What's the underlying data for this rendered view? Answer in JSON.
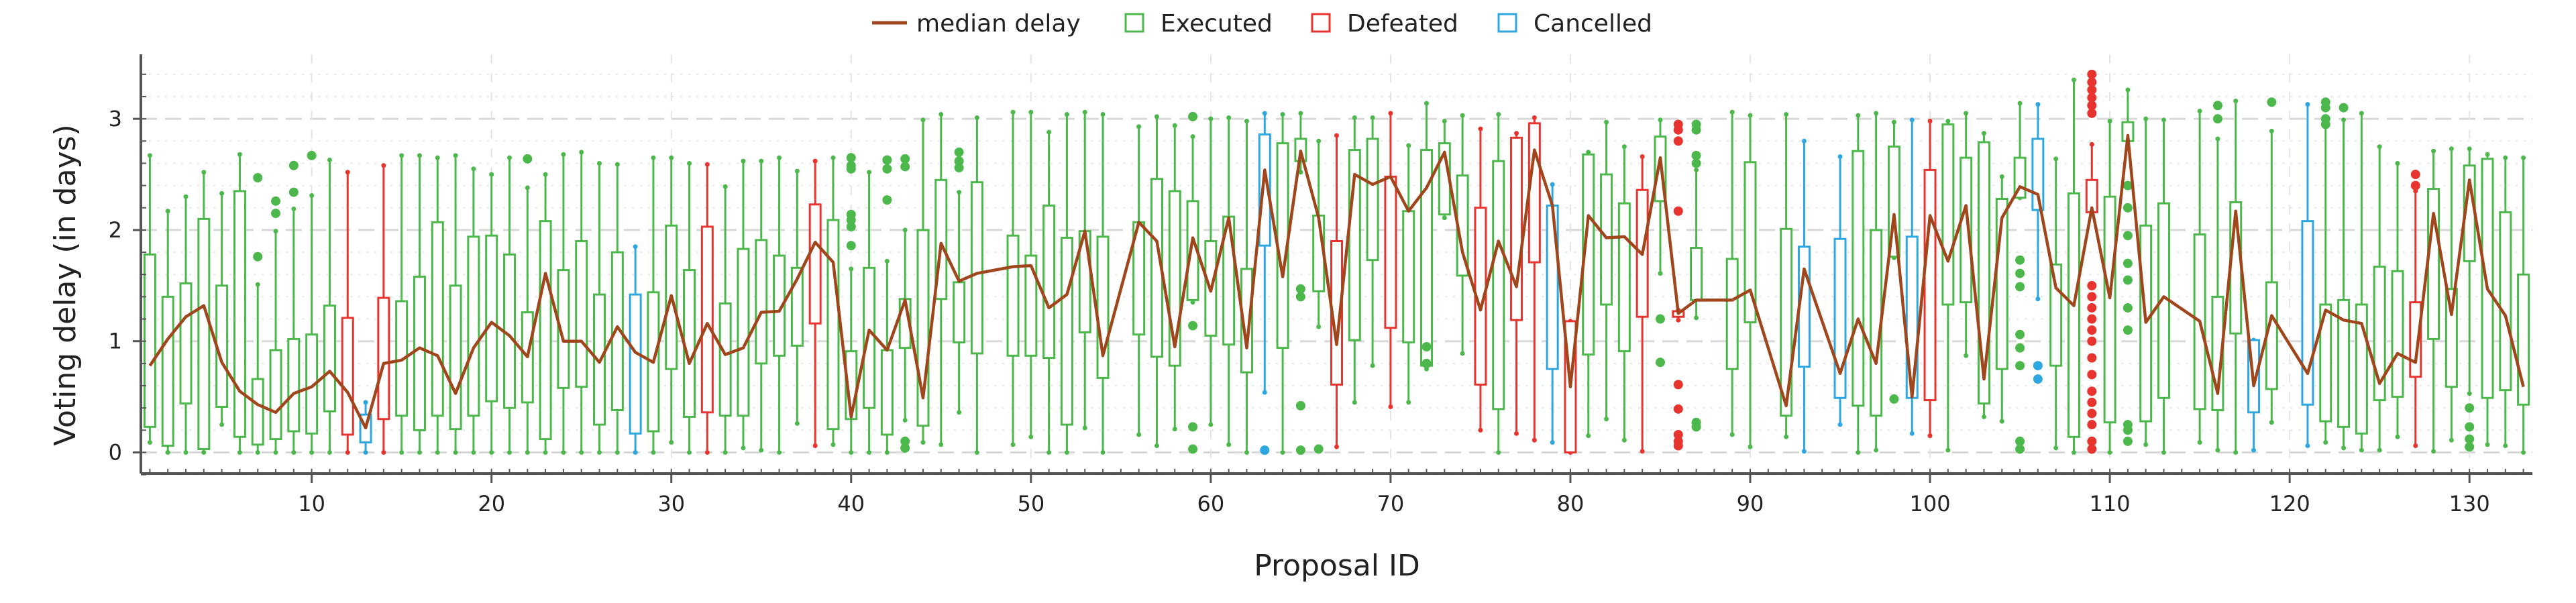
{
  "chart_data": {
    "type": "box",
    "title": "",
    "xlabel": "Proposal ID",
    "ylabel": "Voting delay (in days)",
    "xlim": [
      0.5,
      133.5
    ],
    "ylim": [
      -0.19,
      3.58
    ],
    "xticks": [
      10,
      20,
      30,
      40,
      50,
      60,
      70,
      80,
      90,
      100,
      110,
      120,
      130
    ],
    "yticks": [
      0,
      1,
      2,
      3
    ],
    "grid": true,
    "legend_position": "top-center",
    "legend": [
      {
        "key": "median",
        "label": "median delay",
        "kind": "line"
      },
      {
        "key": "E",
        "label": "Executed",
        "kind": "box"
      },
      {
        "key": "D",
        "label": "Defeated",
        "kind": "box"
      },
      {
        "key": "C",
        "label": "Cancelled",
        "kind": "box"
      }
    ],
    "colors": {
      "E": "#4cb84c",
      "D": "#e8342f",
      "C": "#2ea6df",
      "median": "#a0461c",
      "grid": "#d8d8d8",
      "axis": "#555555"
    },
    "box_fields": [
      "id",
      "status",
      "whisker_low",
      "q1",
      "median",
      "q3",
      "whisker_high",
      "outliers"
    ],
    "boxes": [
      [
        1,
        "E",
        0.09,
        0.23,
        0.78,
        1.78,
        2.67,
        []
      ],
      [
        2,
        "E",
        0,
        0.06,
        1.02,
        1.4,
        2.17,
        []
      ],
      [
        3,
        "E",
        0,
        0.44,
        1.22,
        1.52,
        2.3,
        []
      ],
      [
        4,
        "E",
        0,
        0.03,
        1.32,
        2.1,
        2.52,
        []
      ],
      [
        5,
        "E",
        0.25,
        0.41,
        0.81,
        1.5,
        2.33,
        []
      ],
      [
        6,
        "E",
        0,
        0.14,
        0.55,
        2.35,
        2.68,
        []
      ],
      [
        7,
        "E",
        0,
        0.07,
        0.43,
        0.66,
        1.51,
        [
          2.47,
          1.76
        ]
      ],
      [
        8,
        "E",
        0,
        0.12,
        0.36,
        0.92,
        1.99,
        [
          2.26,
          2.15
        ]
      ],
      [
        9,
        "E",
        0,
        0.19,
        0.53,
        1.02,
        2.19,
        [
          2.58,
          2.34
        ]
      ],
      [
        10,
        "E",
        0,
        0.17,
        0.59,
        1.06,
        2.31,
        [
          2.67
        ]
      ],
      [
        11,
        "E",
        0,
        0.37,
        0.73,
        1.32,
        2.63,
        []
      ],
      [
        12,
        "D",
        0,
        0.16,
        0.54,
        1.21,
        2.52,
        []
      ],
      [
        13,
        "C",
        0,
        0.09,
        0.22,
        0.34,
        0.45,
        []
      ],
      [
        14,
        "D",
        0,
        0.3,
        0.8,
        1.39,
        2.58,
        []
      ],
      [
        15,
        "E",
        0,
        0.33,
        0.83,
        1.36,
        2.67,
        []
      ],
      [
        16,
        "E",
        0,
        0.2,
        0.94,
        1.58,
        2.67,
        []
      ],
      [
        17,
        "E",
        0,
        0.33,
        0.87,
        2.07,
        2.65,
        []
      ],
      [
        18,
        "E",
        0,
        0.21,
        0.53,
        1.5,
        2.67,
        []
      ],
      [
        19,
        "E",
        0,
        0.33,
        0.94,
        1.94,
        2.55,
        []
      ],
      [
        20,
        "E",
        0,
        0.46,
        1.17,
        1.95,
        2.5,
        []
      ],
      [
        21,
        "E",
        0,
        0.4,
        1.05,
        1.78,
        2.65,
        []
      ],
      [
        22,
        "E",
        0,
        0.45,
        0.86,
        1.26,
        2.38,
        [
          2.64
        ]
      ],
      [
        23,
        "E",
        0,
        0.12,
        1.61,
        2.08,
        2.5,
        []
      ],
      [
        24,
        "E",
        0,
        0.58,
        1.0,
        1.64,
        2.68,
        []
      ],
      [
        25,
        "E",
        0,
        0.59,
        1.0,
        1.9,
        2.7,
        []
      ],
      [
        26,
        "E",
        0,
        0.25,
        0.81,
        1.42,
        2.6,
        []
      ],
      [
        27,
        "E",
        0,
        0.38,
        1.13,
        1.8,
        2.59,
        []
      ],
      [
        28,
        "C",
        0,
        0.17,
        0.9,
        1.42,
        1.85,
        []
      ],
      [
        29,
        "E",
        0,
        0.19,
        0.81,
        1.44,
        2.65,
        []
      ],
      [
        30,
        "E",
        0.09,
        0.75,
        1.41,
        2.04,
        2.65,
        []
      ],
      [
        31,
        "E",
        0,
        0.32,
        0.8,
        1.64,
        2.6,
        []
      ],
      [
        32,
        "D",
        0,
        0.36,
        1.16,
        2.03,
        2.59,
        []
      ],
      [
        33,
        "E",
        0,
        0.33,
        0.88,
        1.34,
        2.39,
        []
      ],
      [
        34,
        "E",
        0.04,
        0.33,
        0.94,
        1.83,
        2.62,
        []
      ],
      [
        35,
        "E",
        0.02,
        0.8,
        1.26,
        1.91,
        2.62,
        []
      ],
      [
        36,
        "E",
        0,
        0.87,
        1.27,
        1.77,
        2.65,
        []
      ],
      [
        37,
        "E",
        0.26,
        0.96,
        1.56,
        1.66,
        2.53,
        []
      ],
      [
        38,
        "D",
        0.06,
        1.16,
        1.89,
        2.23,
        2.62,
        []
      ],
      [
        39,
        "E",
        0.07,
        0.21,
        1.71,
        2.09,
        2.65,
        []
      ],
      [
        40,
        "E",
        0,
        0.3,
        0.32,
        0.91,
        1.65,
        [
          2.65,
          2.58,
          2.55,
          2.14,
          2.09,
          2.03,
          1.86
        ]
      ],
      [
        41,
        "E",
        0,
        0.4,
        1.1,
        1.66,
        2.52,
        []
      ],
      [
        42,
        "E",
        0,
        0.16,
        0.92,
        0.92,
        1.72,
        [
          2.63,
          2.55,
          2.27
        ]
      ],
      [
        43,
        "E",
        0.29,
        0.94,
        1.37,
        1.38,
        2.0,
        [
          2.64,
          2.57,
          0.1,
          0.04
        ]
      ],
      [
        44,
        "E",
        0.09,
        0.24,
        0.49,
        2.0,
        2.99,
        []
      ],
      [
        45,
        "E",
        0.07,
        1.38,
        1.88,
        2.45,
        3.04,
        []
      ],
      [
        46,
        "E",
        0.36,
        0.99,
        1.54,
        1.53,
        2.34,
        [
          2.7,
          2.62,
          2.56
        ]
      ],
      [
        47,
        "E",
        0,
        0.89,
        1.61,
        2.43,
        3.01,
        []
      ],
      [
        49,
        "E",
        0.07,
        0.87,
        1.67,
        1.95,
        3.06,
        []
      ],
      [
        50,
        "E",
        0.14,
        0.87,
        1.68,
        1.77,
        3.06,
        []
      ],
      [
        51,
        "E",
        0,
        0.85,
        1.3,
        2.22,
        2.88,
        []
      ],
      [
        52,
        "E",
        0,
        0.25,
        1.42,
        1.93,
        3.04,
        []
      ],
      [
        53,
        "E",
        0.22,
        1.08,
        1.99,
        1.99,
        3.06,
        []
      ],
      [
        54,
        "E",
        0,
        0.67,
        0.87,
        1.94,
        3.04,
        []
      ],
      [
        56,
        "E",
        0.16,
        1.06,
        2.07,
        2.07,
        2.93,
        []
      ],
      [
        57,
        "E",
        0.06,
        0.86,
        1.9,
        2.46,
        3.02,
        []
      ],
      [
        58,
        "E",
        0.21,
        0.78,
        0.95,
        2.35,
        2.94,
        []
      ],
      [
        59,
        "E",
        1.35,
        1.37,
        1.93,
        2.26,
        2.84,
        [
          3.02,
          1.14,
          0.23,
          0.03
        ]
      ],
      [
        60,
        "E",
        0.25,
        1.05,
        1.45,
        1.9,
        3.0,
        []
      ],
      [
        61,
        "E",
        0.07,
        0.97,
        2.11,
        2.12,
        3.01,
        []
      ],
      [
        62,
        "E",
        0,
        0.72,
        0.94,
        1.65,
        2.98,
        []
      ],
      [
        63,
        "C",
        0.54,
        1.86,
        2.54,
        2.86,
        3.05,
        [
          0.02
        ]
      ],
      [
        64,
        "E",
        0,
        0.94,
        1.58,
        2.78,
        3.04,
        []
      ],
      [
        65,
        "E",
        2.52,
        2.62,
        2.71,
        2.82,
        3.05,
        [
          1.47,
          1.4,
          0.42,
          0.02
        ]
      ],
      [
        66,
        "E",
        1.13,
        1.45,
        2.11,
        2.13,
        2.8,
        [
          0.03
        ]
      ],
      [
        67,
        "D",
        0.05,
        0.61,
        0.97,
        1.9,
        2.85,
        []
      ],
      [
        68,
        "E",
        0.45,
        1.01,
        2.5,
        2.72,
        3.01,
        []
      ],
      [
        69,
        "E",
        0.78,
        1.73,
        2.41,
        2.82,
        3.01,
        []
      ],
      [
        70,
        "D",
        0.41,
        1.12,
        2.48,
        2.48,
        3.05,
        []
      ],
      [
        71,
        "E",
        0.45,
        0.99,
        2.17,
        2.17,
        2.76,
        []
      ],
      [
        72,
        "E",
        0.75,
        0.78,
        2.38,
        2.72,
        3.14,
        [
          0.95,
          0.8
        ]
      ],
      [
        73,
        "E",
        2.11,
        2.14,
        2.7,
        2.78,
        2.98,
        []
      ],
      [
        74,
        "E",
        0.89,
        1.59,
        1.8,
        2.49,
        3.03,
        []
      ],
      [
        75,
        "D",
        0.2,
        0.61,
        1.28,
        2.2,
        2.91,
        []
      ],
      [
        76,
        "E",
        0,
        0.39,
        1.9,
        2.62,
        3.04,
        []
      ],
      [
        77,
        "D",
        0.17,
        1.19,
        1.49,
        2.83,
        2.87,
        []
      ],
      [
        78,
        "D",
        0.11,
        1.71,
        2.72,
        2.96,
        3.01,
        []
      ],
      [
        79,
        "C",
        0.09,
        0.75,
        2.22,
        2.22,
        2.41,
        []
      ],
      [
        80,
        "D",
        0,
        0,
        0.59,
        1.18,
        1.18,
        []
      ],
      [
        81,
        "E",
        0.15,
        0.88,
        2.13,
        2.68,
        2.7,
        []
      ],
      [
        82,
        "E",
        0.3,
        1.33,
        1.93,
        2.5,
        2.97,
        []
      ],
      [
        83,
        "E",
        0.11,
        0.91,
        1.94,
        2.24,
        2.75,
        []
      ],
      [
        84,
        "D",
        0.01,
        1.22,
        1.78,
        2.36,
        2.66,
        []
      ],
      [
        85,
        "E",
        1.61,
        2.26,
        2.65,
        2.84,
        2.99,
        [
          1.2,
          0.81
        ]
      ],
      [
        86,
        "D",
        1.19,
        1.22,
        1.25,
        1.27,
        1.28,
        [
          2.95,
          2.9,
          2.8,
          2.17,
          0.61,
          0.39,
          0.16,
          0.1,
          0.06
        ]
      ],
      [
        87,
        "E",
        1.21,
        1.37,
        1.37,
        1.84,
        2.54,
        [
          2.95,
          2.9,
          2.67,
          2.6,
          0.27,
          0.23
        ]
      ],
      [
        89,
        "E",
        0.16,
        0.75,
        1.37,
        1.74,
        3.06,
        []
      ],
      [
        90,
        "E",
        0.05,
        1.17,
        1.46,
        2.61,
        3.03,
        []
      ],
      [
        92,
        "E",
        0.14,
        0.33,
        0.42,
        2.01,
        3.04,
        []
      ],
      [
        93,
        "C",
        0.01,
        0.77,
        1.65,
        1.85,
        2.8,
        []
      ],
      [
        95,
        "C",
        0.25,
        0.49,
        0.71,
        1.92,
        2.66,
        []
      ],
      [
        96,
        "E",
        0,
        0.42,
        1.2,
        2.71,
        3.03,
        []
      ],
      [
        97,
        "E",
        0.02,
        0.33,
        0.8,
        2.0,
        3.05,
        []
      ],
      [
        98,
        "E",
        1.75,
        1.76,
        2.14,
        2.75,
        2.97,
        [
          0.48
        ]
      ],
      [
        99,
        "C",
        0.17,
        0.49,
        0.5,
        1.94,
        2.99,
        []
      ],
      [
        100,
        "D",
        0.15,
        0.47,
        2.13,
        2.54,
        2.98,
        []
      ],
      [
        101,
        "E",
        0.02,
        1.33,
        1.72,
        2.95,
        2.98,
        []
      ],
      [
        102,
        "E",
        0.87,
        1.35,
        2.22,
        2.65,
        3.05,
        []
      ],
      [
        103,
        "E",
        0.32,
        0.44,
        0.66,
        2.79,
        2.87,
        []
      ],
      [
        104,
        "E",
        0.28,
        0.75,
        2.11,
        2.28,
        2.48,
        []
      ],
      [
        105,
        "E",
        2.29,
        2.29,
        2.39,
        2.65,
        3.14,
        [
          1.73,
          1.61,
          1.49,
          1.06,
          0.94,
          0.78,
          0.1,
          0.03
        ]
      ],
      [
        106,
        "C",
        1.38,
        2.18,
        2.32,
        2.82,
        3.13,
        [
          0.78,
          0.66
        ]
      ],
      [
        107,
        "E",
        0.04,
        0.78,
        1.48,
        1.69,
        2.64,
        []
      ],
      [
        108,
        "E",
        0,
        0.14,
        1.32,
        2.33,
        3.35,
        []
      ],
      [
        109,
        "D",
        2.16,
        2.16,
        2.2,
        2.45,
        2.77,
        [
          3.4,
          3.33,
          3.26,
          3.19,
          3.12,
          3.05,
          1.5,
          1.4,
          1.3,
          1.2,
          1.1,
          1.0,
          0.85,
          0.7,
          0.55,
          0.45,
          0.35,
          0.25,
          0.1,
          0.03
        ]
      ],
      [
        110,
        "E",
        0,
        0.27,
        1.39,
        2.3,
        2.98,
        []
      ],
      [
        111,
        "E",
        2.8,
        2.8,
        2.85,
        2.97,
        3.26,
        [
          2.4,
          2.2,
          1.95,
          1.7,
          1.55,
          1.3,
          1.1,
          0.25,
          0.2,
          0.1
        ]
      ],
      [
        112,
        "E",
        0.07,
        0.28,
        1.17,
        2.04,
        3.0,
        []
      ],
      [
        113,
        "E",
        0,
        0.49,
        1.4,
        2.24,
        2.99,
        []
      ],
      [
        115,
        "E",
        0.09,
        0.39,
        1.18,
        1.96,
        3.07,
        []
      ],
      [
        116,
        "E",
        0.02,
        0.38,
        0.53,
        1.4,
        2.82,
        [
          3.12,
          3.0
        ]
      ],
      [
        117,
        "E",
        0,
        1.07,
        2.17,
        2.25,
        3.16,
        []
      ],
      [
        118,
        "C",
        0.02,
        0.36,
        0.6,
        1.01,
        1.01,
        []
      ],
      [
        119,
        "E",
        0.27,
        0.57,
        1.23,
        1.53,
        2.89,
        [
          3.15
        ]
      ],
      [
        121,
        "C",
        0.06,
        0.43,
        0.71,
        2.08,
        3.13,
        []
      ],
      [
        122,
        "E",
        0.09,
        0.28,
        1.28,
        1.33,
        2.97,
        [
          3.15,
          3.1,
          3.0,
          2.95
        ]
      ],
      [
        123,
        "E",
        0.04,
        0.23,
        1.19,
        1.37,
        2.99,
        [
          3.1
        ]
      ],
      [
        124,
        "E",
        0.02,
        0.17,
        1.16,
        1.33,
        3.05,
        []
      ],
      [
        125,
        "E",
        0.02,
        0.47,
        0.62,
        1.67,
        2.75,
        []
      ],
      [
        126,
        "E",
        0.14,
        0.5,
        0.89,
        1.63,
        2.6,
        []
      ],
      [
        127,
        "D",
        0.06,
        0.68,
        0.81,
        1.35,
        2.35,
        [
          2.5,
          2.4
        ]
      ],
      [
        128,
        "E",
        0.01,
        1.02,
        2.15,
        2.37,
        2.71,
        []
      ],
      [
        129,
        "E",
        0.11,
        0.59,
        1.24,
        1.47,
        2.73,
        []
      ],
      [
        130,
        "E",
        0.53,
        1.72,
        2.45,
        2.58,
        2.73,
        [
          0.4,
          0.23,
          0.12,
          0.05
        ]
      ],
      [
        131,
        "E",
        0.07,
        0.49,
        1.47,
        2.64,
        2.68,
        []
      ],
      [
        132,
        "E",
        0.06,
        0.56,
        1.23,
        2.16,
        2.65,
        []
      ],
      [
        133,
        "E",
        0,
        0.43,
        0.59,
        1.6,
        2.65,
        []
      ]
    ]
  }
}
